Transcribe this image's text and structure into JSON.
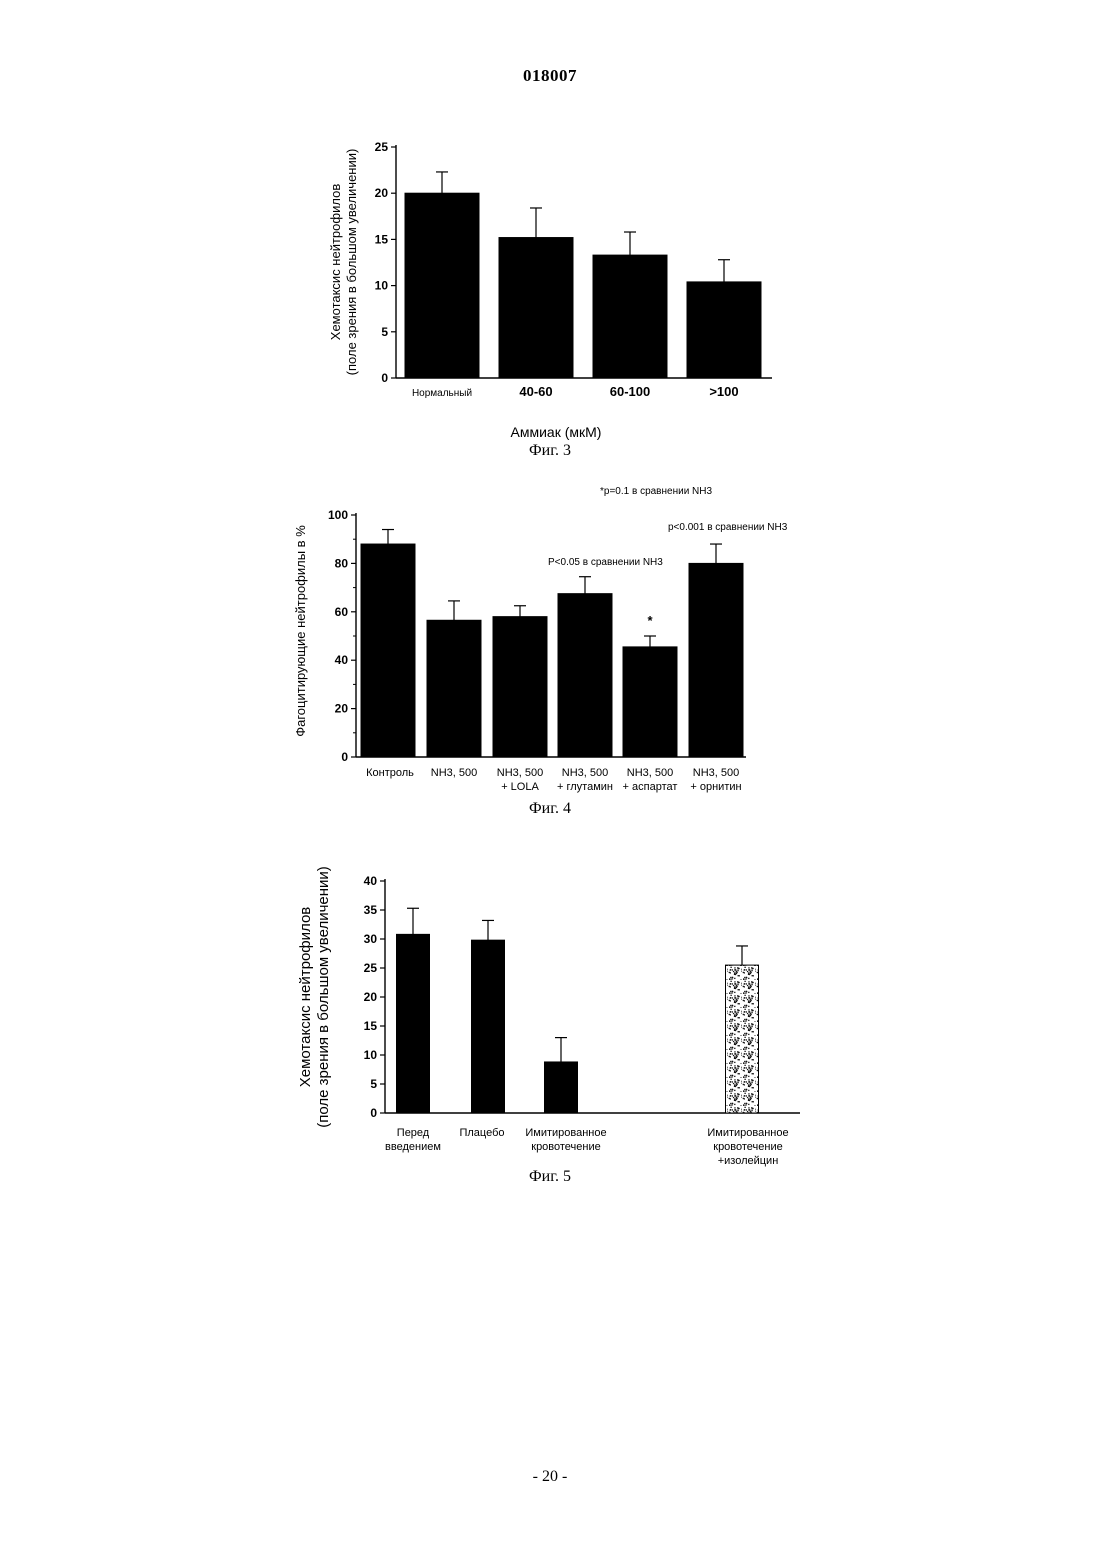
{
  "page": {
    "doc_number": "018007",
    "page_number": "- 20 -"
  },
  "chart_data": [
    {
      "type": "bar",
      "fig_caption": "Фиг. 3",
      "categories": [
        "Нормальный",
        "40-60",
        "60-100",
        ">100"
      ],
      "values": [
        20,
        15.2,
        13.3,
        10.4
      ],
      "errors": [
        2.3,
        3.2,
        2.5,
        2.4
      ],
      "xlabel": "Аммиак (мкМ)",
      "ylabel_lines": [
        "Хемотаксис нейтрофилов",
        "(поле зрения в большом увеличении)"
      ],
      "ylim": [
        0,
        25
      ],
      "yticks": [
        "0",
        "5",
        "10",
        "15",
        "20",
        "25"
      ]
    },
    {
      "type": "bar",
      "fig_caption": "Фиг. 4",
      "categories": [
        [
          "Контроль"
        ],
        [
          "NH3, 500"
        ],
        [
          "NH3, 500",
          "+ LOLA"
        ],
        [
          "NH3, 500",
          "+ глутамин"
        ],
        [
          "NH3, 500",
          "+ аспартат"
        ],
        [
          "NH3, 500",
          "+ орнитин"
        ]
      ],
      "values": [
        88,
        56.5,
        58,
        67.5,
        45.5,
        80
      ],
      "errors": [
        6,
        8,
        4.5,
        7,
        4.5,
        8
      ],
      "ylabel": "Фагоцитирующие нейтрофилы в %",
      "ylim": [
        0,
        100
      ],
      "yticks": [
        "0",
        "20",
        "40",
        "60",
        "80",
        "100"
      ],
      "annotations": {
        "top": "*p=0.1 в сравнении NH3",
        "ornithine": "p<0.001 в сравнении NH3",
        "glutamine": "P<0.05 в сравнении NH3",
        "star": "*"
      }
    },
    {
      "type": "bar",
      "fig_caption": "Фиг. 5",
      "categories": [
        [
          "Перед",
          "введением"
        ],
        [
          "Плацебо"
        ],
        [
          "Имитированное",
          "кровотечение"
        ],
        [
          "Имитированное",
          "кровотечение",
          "+изолейцин"
        ]
      ],
      "values": [
        30.8,
        29.8,
        8.8,
        25.5
      ],
      "errors": [
        4.5,
        3.4,
        4.2,
        3.3
      ],
      "fills": [
        "solid",
        "solid",
        "solid",
        "stippled"
      ],
      "ylabel_lines": [
        "Хемотаксис нейтрофилов",
        "(поле зрения в большом увеличении)"
      ],
      "ylim": [
        0,
        40
      ],
      "yticks": [
        "0",
        "5",
        "10",
        "15",
        "20",
        "25",
        "30",
        "35",
        "40"
      ]
    }
  ]
}
